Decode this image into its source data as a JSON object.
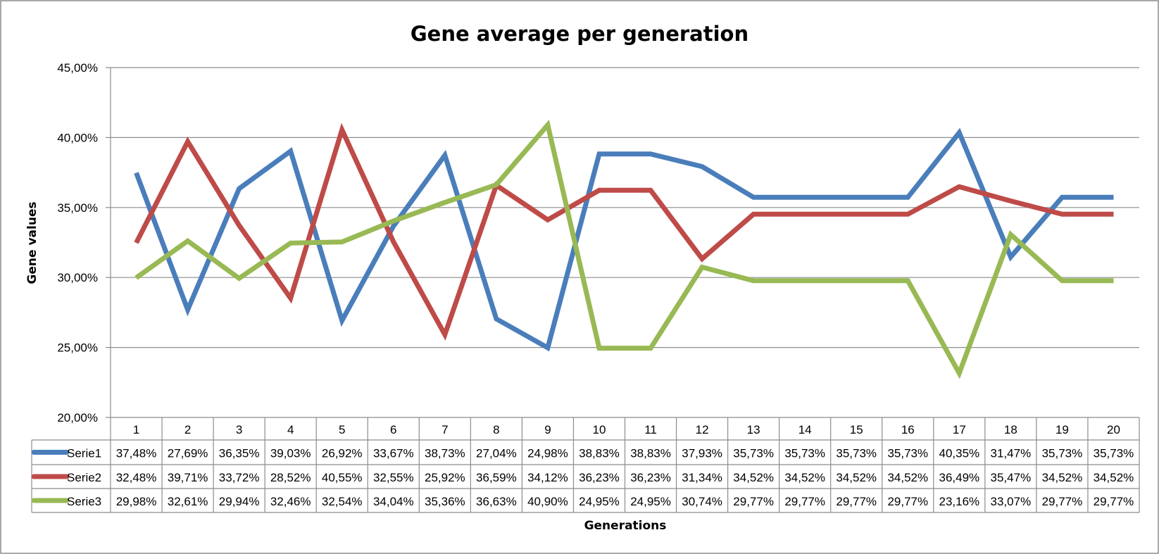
{
  "chart_data": {
    "type": "line",
    "title": "Gene average per generation",
    "xlabel": "Generations",
    "ylabel": "Gene values",
    "ylim": [
      0.2,
      0.45
    ],
    "yticks": [
      "20,00%",
      "25,00%",
      "30,00%",
      "35,00%",
      "40,00%",
      "45,00%"
    ],
    "grid": true,
    "legend": "data-table",
    "categories": [
      "1",
      "2",
      "3",
      "4",
      "5",
      "6",
      "7",
      "8",
      "9",
      "10",
      "11",
      "12",
      "13",
      "14",
      "15",
      "16",
      "17",
      "18",
      "19",
      "20"
    ],
    "series": [
      {
        "name": "Serie1",
        "color": "#4a7ebb",
        "values": [
          0.3748,
          0.2769,
          0.3635,
          0.3903,
          0.2692,
          0.3367,
          0.3873,
          0.2704,
          0.2498,
          0.3883,
          0.3883,
          0.3793,
          0.3573,
          0.3573,
          0.3573,
          0.3573,
          0.4035,
          0.3147,
          0.3573,
          0.3573
        ],
        "labels": [
          "37,48%",
          "27,69%",
          "36,35%",
          "39,03%",
          "26,92%",
          "33,67%",
          "38,73%",
          "27,04%",
          "24,98%",
          "38,83%",
          "38,83%",
          "37,93%",
          "35,73%",
          "35,73%",
          "35,73%",
          "35,73%",
          "40,35%",
          "31,47%",
          "35,73%",
          "35,73%"
        ]
      },
      {
        "name": "Serie2",
        "color": "#be4b48",
        "values": [
          0.3248,
          0.3971,
          0.3372,
          0.2852,
          0.4055,
          0.3255,
          0.2592,
          0.3659,
          0.3412,
          0.3623,
          0.3623,
          0.3134,
          0.3452,
          0.3452,
          0.3452,
          0.3452,
          0.3649,
          0.3547,
          0.3452,
          0.3452
        ],
        "labels": [
          "32,48%",
          "39,71%",
          "33,72%",
          "28,52%",
          "40,55%",
          "32,55%",
          "25,92%",
          "36,59%",
          "34,12%",
          "36,23%",
          "36,23%",
          "31,34%",
          "34,52%",
          "34,52%",
          "34,52%",
          "34,52%",
          "36,49%",
          "35,47%",
          "34,52%",
          "34,52%"
        ]
      },
      {
        "name": "Serie3",
        "color": "#98b954",
        "values": [
          0.2998,
          0.3261,
          0.2994,
          0.3246,
          0.3254,
          0.3404,
          0.3536,
          0.3663,
          0.409,
          0.2495,
          0.2495,
          0.3074,
          0.2977,
          0.2977,
          0.2977,
          0.2977,
          0.2316,
          0.3307,
          0.2977,
          0.2977
        ],
        "labels": [
          "29,98%",
          "32,61%",
          "29,94%",
          "32,46%",
          "32,54%",
          "34,04%",
          "35,36%",
          "36,63%",
          "40,90%",
          "24,95%",
          "24,95%",
          "30,74%",
          "29,77%",
          "29,77%",
          "29,77%",
          "29,77%",
          "23,16%",
          "33,07%",
          "29,77%",
          "29,77%"
        ]
      }
    ]
  }
}
